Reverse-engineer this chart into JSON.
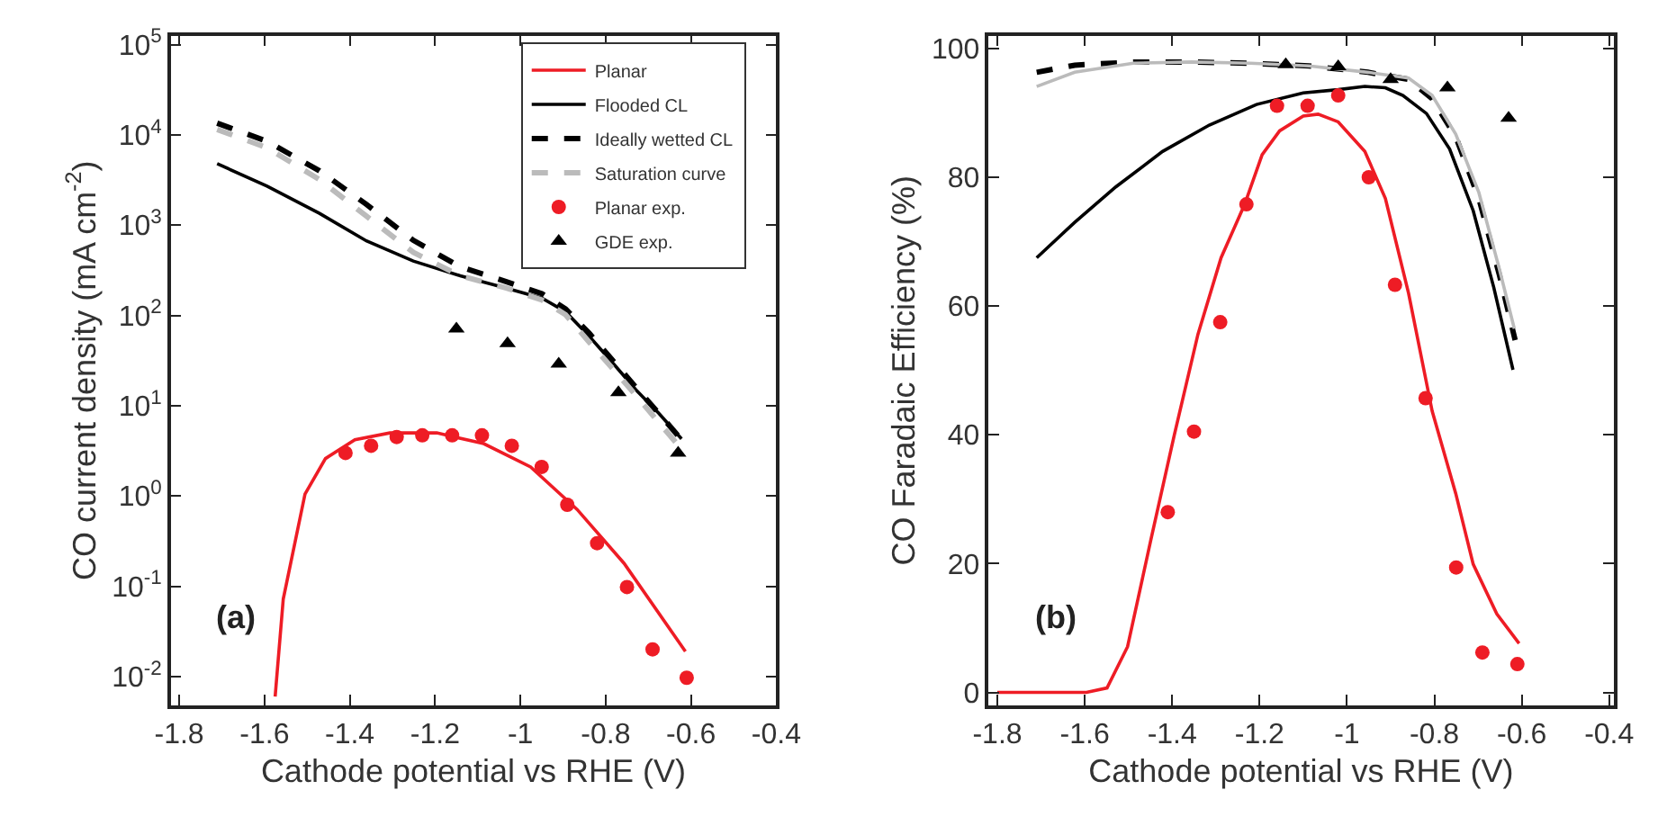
{
  "chart_data": [
    {
      "type": "line",
      "xlabel": "Cathode potential vs RHE (V)",
      "ylabel": "CO current density (mA cm$^{-2}$)",
      "log": "y",
      "grid": false,
      "legend": "top right",
      "xlim": [
        -1.82,
        -0.4
      ],
      "xticks": [
        -1.8,
        -1.6,
        -1.4,
        -1.2,
        -1,
        -0.8,
        -0.6,
        -0.4
      ],
      "ylim": [
        0.0048,
        126000
      ],
      "yticks": [
        {
          "value": 0.01,
          "label": "10$^{-2}$"
        },
        {
          "value": 0.1,
          "label": "10$^{-1}$"
        },
        {
          "value": 1,
          "label": "10$^{0}$"
        },
        {
          "value": 10,
          "label": "10$^{1}$"
        },
        {
          "value": 100,
          "label": "10$^{2}$"
        },
        {
          "value": 1000,
          "label": "10$^{3}$"
        },
        {
          "value": 10000,
          "label": "10$^{4}$"
        },
        {
          "value": 100000,
          "label": "10$^{5}$"
        }
      ],
      "annotations": [
        "(a)"
      ],
      "series": [
        {
          "name": "Planar",
          "color": "#ee1c25",
          "line_style": "solid",
          "marker": "none",
          "x": [
            -1.575,
            -1.556,
            -1.505,
            -1.457,
            -1.388,
            -1.306,
            -1.196,
            -1.086,
            -0.976,
            -0.867,
            -0.757,
            -0.613
          ],
          "values": [
            0.006,
            0.072,
            1.05,
            2.6,
            4.2,
            5.0,
            5.0,
            3.8,
            2.1,
            0.71,
            0.18,
            0.019
          ]
        },
        {
          "name": "Flooded CL",
          "color": "#000000",
          "line_style": "solid",
          "marker": "none",
          "x": [
            -1.711,
            -1.594,
            -1.471,
            -1.361,
            -1.251,
            -1.141,
            -1.031,
            -0.949,
            -0.894,
            -0.839,
            -0.784,
            -0.729,
            -0.675,
            -0.622
          ],
          "values": [
            4800,
            2700,
            1350,
            670,
            400,
            275,
            200,
            155,
            110,
            59,
            30,
            15,
            8.2,
            4.3
          ]
        },
        {
          "name": "Ideally wetted CL",
          "color": "#000000",
          "line_style": "dashed",
          "marker": "none",
          "x": [
            -1.711,
            -1.594,
            -1.471,
            -1.361,
            -1.251,
            -1.141,
            -1.031,
            -0.949,
            -0.894,
            -0.839,
            -0.784,
            -0.729,
            -0.675,
            -0.622
          ],
          "values": [
            13500,
            8500,
            4000,
            1700,
            680,
            345,
            235,
            174,
            118,
            64,
            32,
            16,
            8.2,
            4.2
          ]
        },
        {
          "name": "Saturation curve",
          "color": "#bbbbbb",
          "line_style": "dashed",
          "marker": "none",
          "x": [
            -1.711,
            -1.594,
            -1.471,
            -1.361,
            -1.251,
            -1.141,
            -1.031,
            -0.949,
            -0.894,
            -0.839,
            -0.784,
            -0.729,
            -0.675,
            -0.633
          ],
          "values": [
            11500,
            7200,
            3200,
            1260,
            500,
            275,
            200,
            148,
            102,
            51,
            26,
            13,
            6.5,
            3.8
          ]
        },
        {
          "name": "Planar exp.",
          "type": "scatter",
          "color": "#ee1c25",
          "marker": "circle",
          "x": [
            -1.41,
            -1.35,
            -1.29,
            -1.23,
            -1.16,
            -1.09,
            -1.02,
            -0.95,
            -0.89,
            -0.82,
            -0.75,
            -0.69,
            -0.61
          ],
          "values": [
            3.0,
            3.6,
            4.5,
            4.7,
            4.7,
            4.7,
            3.6,
            2.1,
            0.8,
            0.3,
            0.098,
            0.02,
            0.0097
          ]
        },
        {
          "name": "GDE exp.",
          "type": "scatter",
          "color": "#000000",
          "marker": "triangle",
          "x": [
            -1.15,
            -1.03,
            -0.91,
            -0.77,
            -0.63
          ],
          "values": [
            71,
            49,
            29,
            14,
            3.0
          ]
        }
      ]
    },
    {
      "type": "line",
      "xlabel": "Cathode potential vs RHE (V)",
      "ylabel": "CO Faradaic Efficiency (%)",
      "grid": false,
      "legend": false,
      "xlim": [
        -1.82,
        -0.39
      ],
      "xticks": [
        -1.8,
        -1.6,
        -1.4,
        -1.2,
        -1,
        -0.8,
        -0.6,
        -0.4
      ],
      "ylim": [
        -2,
        102
      ],
      "yticks": [
        0,
        20,
        40,
        60,
        80,
        100
      ],
      "annotations": [
        "(b)"
      ],
      "series": [
        {
          "color": "#ee1c25",
          "line_style": "solid",
          "marker": "none",
          "x": [
            -1.8,
            -1.596,
            -1.549,
            -1.502,
            -1.449,
            -1.395,
            -1.341,
            -1.288,
            -1.234,
            -1.194,
            -1.154,
            -1.1,
            -1.066,
            -1.02,
            -0.959,
            -0.912,
            -0.859,
            -0.805,
            -0.751,
            -0.711,
            -0.657,
            -0.606
          ],
          "values": [
            0,
            0,
            0.7,
            7.1,
            23.6,
            40,
            55.6,
            67.5,
            75.8,
            83.5,
            87.2,
            89.5,
            89.8,
            88.6,
            84,
            76.7,
            62,
            43.7,
            30.9,
            19.9,
            12.2,
            7.6
          ]
        },
        {
          "color": "#000000",
          "line_style": "solid",
          "marker": "none",
          "x": [
            -1.71,
            -1.623,
            -1.529,
            -1.422,
            -1.315,
            -1.207,
            -1.1,
            -1.02,
            -0.959,
            -0.912,
            -0.872,
            -0.818,
            -0.765,
            -0.711,
            -0.664,
            -0.62
          ],
          "values": [
            67.5,
            73,
            78.5,
            84,
            88.1,
            91.3,
            93.1,
            93.6,
            94.1,
            93.9,
            92.7,
            89.9,
            84.4,
            74.8,
            62.9,
            50.1
          ]
        },
        {
          "color": "#000000",
          "line_style": "dashed",
          "marker": "none",
          "x": [
            -1.71,
            -1.623,
            -1.489,
            -1.355,
            -1.221,
            -1.087,
            -0.952,
            -0.859,
            -0.805,
            -0.751,
            -0.698,
            -0.651,
            -0.615
          ],
          "values": [
            96.3,
            97.4,
            97.9,
            97.9,
            97.7,
            97.3,
            96.3,
            95.2,
            92.2,
            86.3,
            76.7,
            64.8,
            54.7
          ]
        },
        {
          "color": "#bbbbbb",
          "line_style": "solid",
          "marker": "none",
          "x": [
            -1.71,
            -1.623,
            -1.489,
            -1.355,
            -1.221,
            -1.087,
            -0.952,
            -0.859,
            -0.805,
            -0.751,
            -0.698,
            -0.651,
            -0.617
          ],
          "values": [
            94.1,
            96.3,
            97.7,
            97.9,
            97.7,
            97.3,
            96.3,
            95.4,
            92.7,
            86.7,
            77.6,
            65.7,
            56.5
          ]
        },
        {
          "type": "scatter",
          "color": "#ee1c25",
          "marker": "circle",
          "x": [
            -1.41,
            -1.35,
            -1.29,
            -1.23,
            -1.16,
            -1.09,
            -1.02,
            -0.95,
            -0.89,
            -0.82,
            -0.75,
            -0.69,
            -0.61
          ],
          "values": [
            28,
            40.5,
            57.5,
            75.8,
            91.1,
            91.1,
            92.7,
            80,
            63.3,
            45.7,
            19.4,
            6.2,
            4.4
          ]
        },
        {
          "type": "scatter",
          "color": "#000000",
          "marker": "triangle",
          "x": [
            -1.14,
            -1.02,
            -0.9,
            -0.77,
            -0.63
          ],
          "values": [
            97.5,
            97.2,
            95.2,
            93.9,
            89.2
          ]
        }
      ]
    }
  ]
}
